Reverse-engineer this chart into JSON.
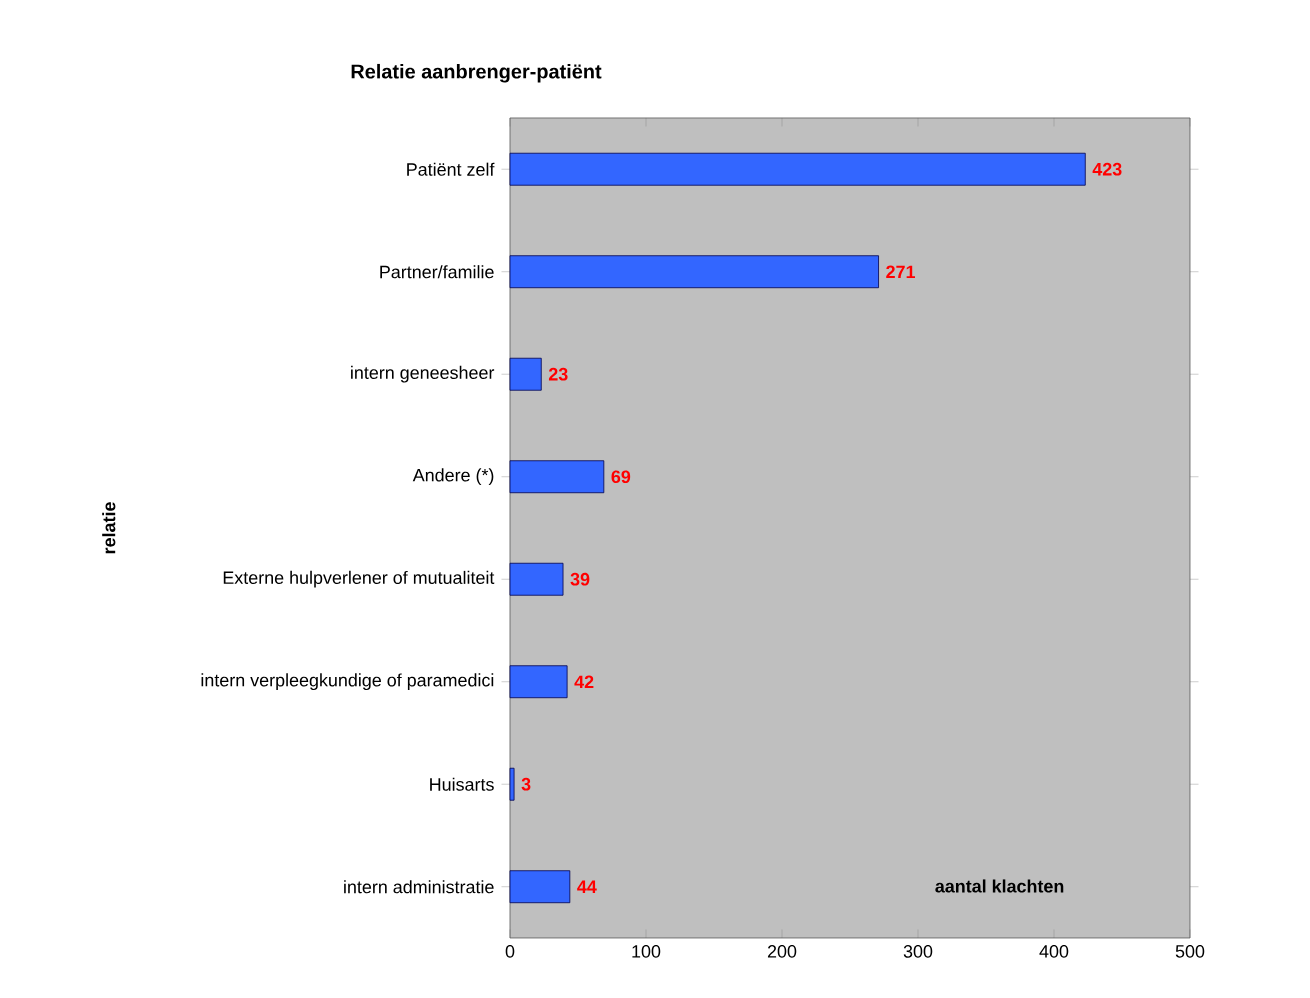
{
  "chart_data": {
    "type": "bar",
    "orientation": "horizontal",
    "title": "Relatie aanbrenger-patiënt",
    "xlabel": "aantal klachten",
    "ylabel": "relatie",
    "categories": [
      "Patiënt zelf",
      "Partner/familie",
      "intern geneesheer",
      "Andere (*)",
      "Externe hulpverlener of mutualiteit",
      "intern verpleegkundige of paramedici",
      "Huisarts",
      "intern administratie"
    ],
    "values": [
      423,
      271,
      23,
      69,
      39,
      42,
      3,
      44
    ],
    "color": "#3366ff",
    "data_labels": true,
    "xlim": [
      0,
      500
    ],
    "xticks": [
      0,
      100,
      200,
      300,
      400,
      500
    ],
    "grid": false
  }
}
